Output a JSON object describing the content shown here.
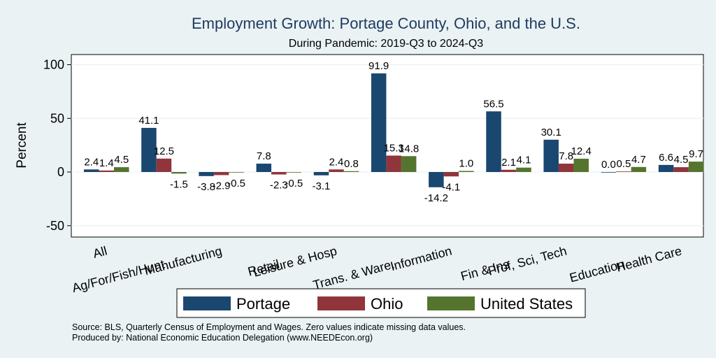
{
  "chart_data": {
    "type": "bar",
    "title": "Employment Growth: Portage County, Ohio, and the U.S.",
    "subtitle": "During Pandemic: 2019-Q3 to 2024-Q3",
    "ylabel": "Percent",
    "xlabel": "",
    "ylim": [
      -60,
      110
    ],
    "yticks": [
      -50,
      0,
      50,
      100
    ],
    "yticklabels": [
      "-50",
      "0",
      "50",
      "100"
    ],
    "categories": [
      "All",
      "Ag/For/Fish/Hunt",
      "Manufacturing",
      "Retail",
      "Leisure & Hosp",
      "Trans. & Ware.",
      "Information",
      "Fin & Ins",
      "Prof, Sci, Tech",
      "Education",
      "Health Care"
    ],
    "series": [
      {
        "name": "Portage",
        "color": "#1a476f",
        "values": [
          2.4,
          41.1,
          -3.8,
          7.8,
          -3.1,
          91.9,
          -14.2,
          56.5,
          30.1,
          0.0,
          6.6
        ],
        "labels": [
          "2.4",
          "41.1",
          "-3.8",
          "7.8",
          "-3.1",
          "91.9",
          "-14.2",
          "56.5",
          "30.1",
          "0.0",
          "6.6"
        ]
      },
      {
        "name": "Ohio",
        "color": "#90353b",
        "values": [
          1.4,
          12.5,
          -2.9,
          -2.3,
          2.4,
          15.3,
          -4.1,
          2.1,
          7.8,
          0.5,
          4.5
        ],
        "labels": [
          "1.4",
          "12.5",
          "-2.9",
          "-2.3",
          "2.4",
          "15.3",
          "-4.1",
          "2.1",
          "7.8",
          "0.5",
          "4.5"
        ]
      },
      {
        "name": "United States",
        "color": "#55752f",
        "values": [
          4.5,
          -1.5,
          -0.5,
          -0.5,
          0.8,
          14.8,
          1.0,
          4.1,
          12.4,
          4.7,
          9.7
        ],
        "labels": [
          "4.5",
          "-1.5",
          "-0.5",
          "-0.5",
          "0.8",
          "14.8",
          "1.0",
          "4.1",
          "12.4",
          "4.7",
          "9.7"
        ]
      }
    ],
    "legend_position": "bottom",
    "grid": true
  },
  "notes": {
    "source": "Source: BLS, Quarterly Census of Employment and Wages. Zero values indicate missing data values.",
    "produced": "Produced by: National Economic Education Delegation (www.NEEDEcon.org)"
  }
}
